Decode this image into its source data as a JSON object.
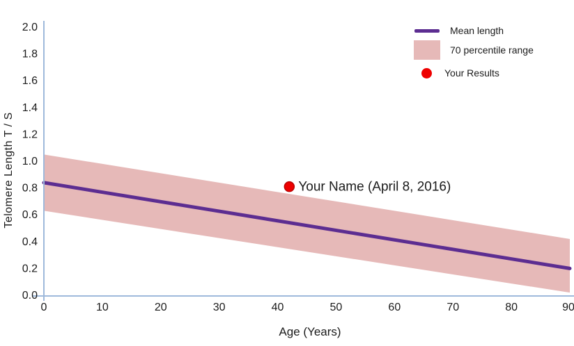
{
  "chart_data": {
    "type": "line",
    "title": "",
    "xlabel": "Age (Years)",
    "ylabel": "Telomere Length T / S",
    "xlim": [
      0,
      90
    ],
    "ylim": [
      0,
      2
    ],
    "x_ticks": [
      "0",
      "10",
      "20",
      "30",
      "40",
      "50",
      "60",
      "70",
      "80",
      "90"
    ],
    "y_ticks": [
      "0.0",
      "0.2",
      "0.4",
      "0.6",
      "0.8",
      "1.0",
      "1.2",
      "1.4",
      "1.6",
      "1.8",
      "2.0"
    ],
    "grid": false,
    "legend_position": "top-right",
    "axis_color": "#9EB9DB",
    "text_color": "#1A1A1A",
    "series": [
      {
        "name": "70 percentile range",
        "kind": "band",
        "x": [
          0,
          90
        ],
        "top": [
          1.05,
          0.42
        ],
        "bottom": [
          0.63,
          0.02
        ],
        "color": "#E6B9B8"
      },
      {
        "name": "Mean length",
        "kind": "line",
        "x": [
          0,
          90
        ],
        "y": [
          0.84,
          0.2
        ],
        "color": "#5C2D91",
        "stroke_width": 5
      },
      {
        "name": "Your Results",
        "kind": "point",
        "x": 42,
        "y": 0.81,
        "radius": 7,
        "color": "#EE0000",
        "edge_color": "#B80000",
        "label": "Your Name (April 8, 2016)"
      }
    ],
    "legend": {
      "entries": [
        {
          "label": "Mean length",
          "swatch": "line",
          "color": "#5C2D91"
        },
        {
          "label": "70 percentile range",
          "swatch": "box",
          "color": "#E6B9B8"
        },
        {
          "label": "Your Results",
          "swatch": "dot",
          "color": "#EE0000"
        }
      ]
    }
  }
}
